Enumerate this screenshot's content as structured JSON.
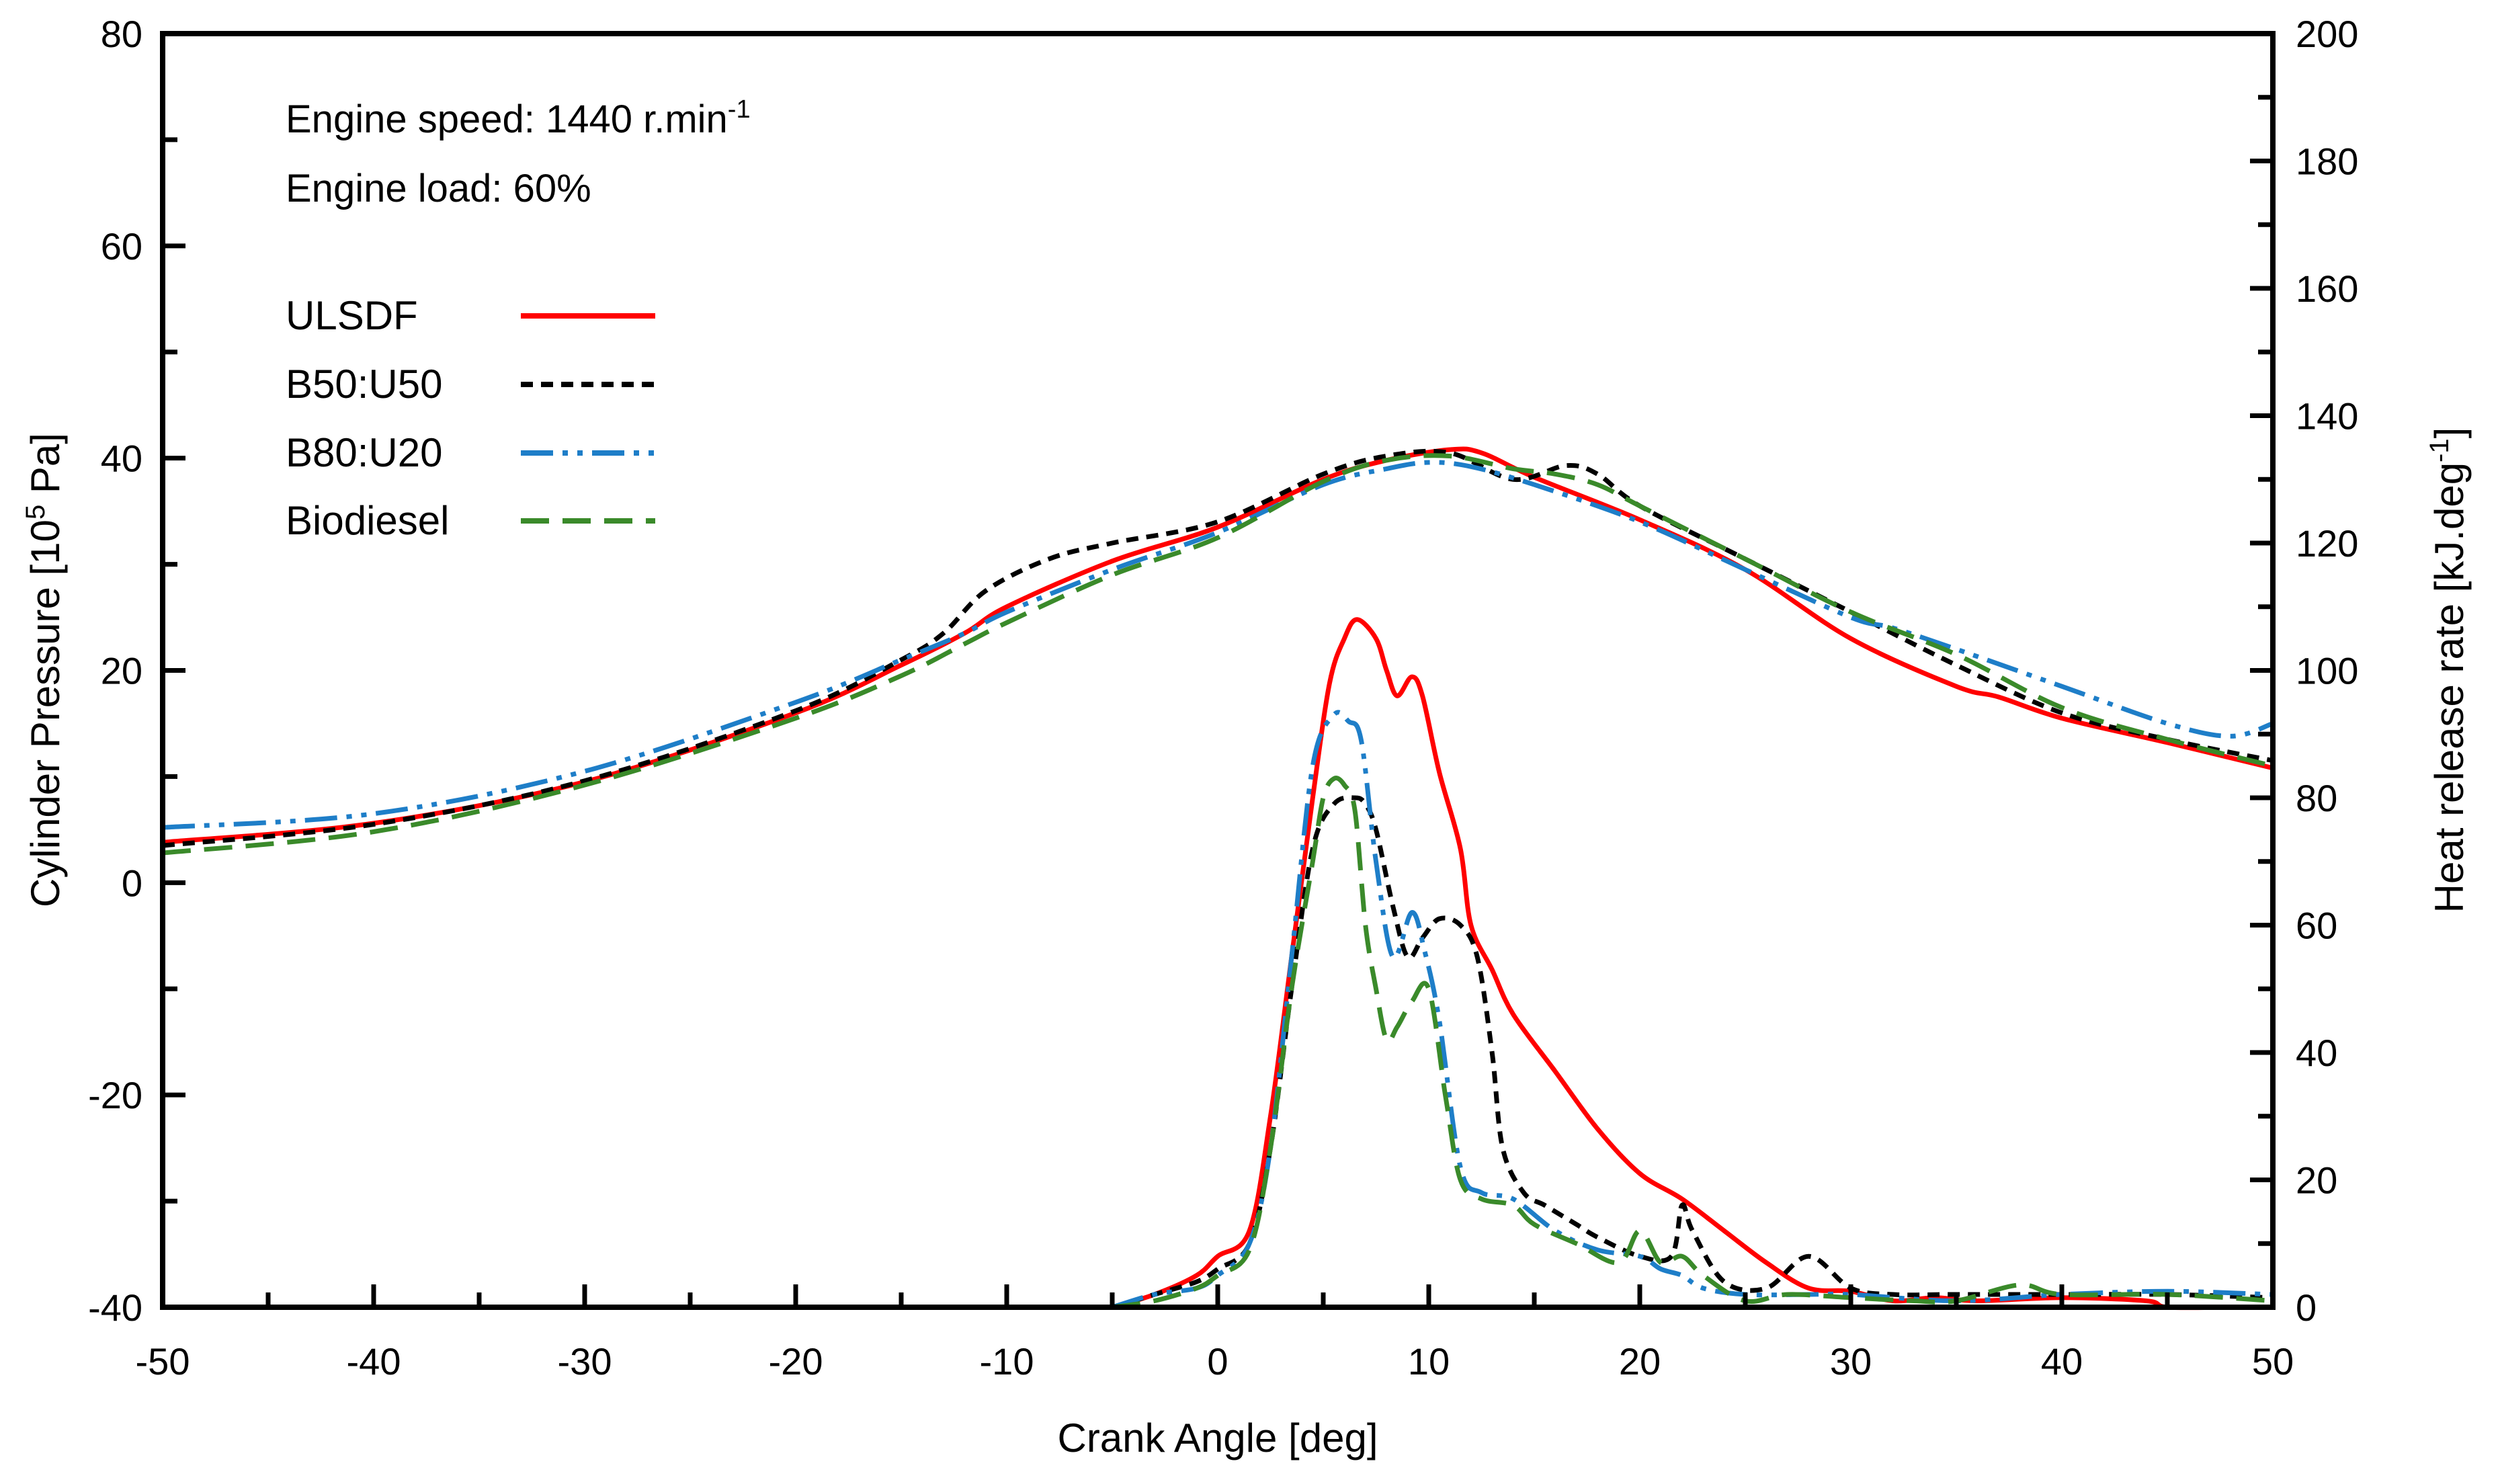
{
  "chart_data": {
    "type": "line",
    "xlabel": "Crank Angle [deg]",
    "ylabel_left": {
      "pre": "Cylinder Pressure [10",
      "sup": "5",
      "post": " Pa]"
    },
    "ylabel_right": {
      "pre": "Heat release rate [kJ.deg",
      "sup": "-1",
      "post": "]"
    },
    "xlim": [
      -50,
      50
    ],
    "ylim_left": [
      -40,
      80
    ],
    "ylim_right": [
      0,
      200
    ],
    "x_ticks": [
      -50,
      -40,
      -30,
      -20,
      -10,
      0,
      10,
      20,
      30,
      40,
      50
    ],
    "y_left_ticks": [
      -40,
      -20,
      0,
      20,
      40,
      60,
      80
    ],
    "y_right_ticks": [
      0,
      20,
      40,
      60,
      80,
      100,
      120,
      140,
      160,
      180,
      200
    ],
    "x_tick_labels": [
      "-50",
      "-40",
      "-30",
      "-20",
      "-10",
      "0",
      "10",
      "20",
      "30",
      "40",
      "50"
    ],
    "y_left_tick_labels": [
      "-40",
      "-20",
      "0",
      "20",
      "40",
      "60",
      "80"
    ],
    "y_right_tick_labels": [
      "0",
      "20",
      "40",
      "60",
      "80",
      "100",
      "120",
      "140",
      "160",
      "180",
      "200"
    ],
    "grid": false,
    "legend_position": "top-left",
    "annotations": {
      "speed": {
        "pre": "Engine speed: 1440 r.min",
        "sup": "-1"
      },
      "load": "Engine load: 60%"
    },
    "series": [
      {
        "name": "ULSDF",
        "color": "#ff0000",
        "dash": "solid",
        "pressure": [
          [
            -50,
            3.8
          ],
          [
            -40,
            5.6
          ],
          [
            -30,
            9.5
          ],
          [
            -20,
            16.0
          ],
          [
            -15,
            20.5
          ],
          [
            -12,
            23.5
          ],
          [
            -10,
            26.0
          ],
          [
            -5,
            30.3
          ],
          [
            0,
            33.5
          ],
          [
            5,
            38.0
          ],
          [
            8,
            39.8
          ],
          [
            11,
            40.8
          ],
          [
            12.5,
            40.5
          ],
          [
            15,
            38.2
          ],
          [
            20,
            34.2
          ],
          [
            25,
            29.5
          ],
          [
            30,
            23.0
          ],
          [
            35,
            18.5
          ],
          [
            37,
            17.5
          ],
          [
            40,
            15.5
          ],
          [
            45,
            13.2
          ],
          [
            50,
            10.8
          ]
        ],
        "hrr": [
          [
            -5,
            0
          ],
          [
            -3,
            2
          ],
          [
            -1,
            5
          ],
          [
            0,
            8
          ],
          [
            1.5,
            12
          ],
          [
            2.5,
            30
          ],
          [
            3.5,
            55
          ],
          [
            4.5,
            80
          ],
          [
            5.3,
            98
          ],
          [
            6,
            105
          ],
          [
            6.6,
            108
          ],
          [
            7.5,
            105
          ],
          [
            8,
            100
          ],
          [
            8.5,
            96
          ],
          [
            9.2,
            99
          ],
          [
            9.7,
            96
          ],
          [
            10.5,
            84
          ],
          [
            11.5,
            72
          ],
          [
            12,
            60
          ],
          [
            13,
            53
          ],
          [
            14,
            46
          ],
          [
            16,
            37
          ],
          [
            18,
            28
          ],
          [
            20,
            21
          ],
          [
            22,
            17
          ],
          [
            24,
            12
          ],
          [
            26,
            7
          ],
          [
            28,
            3
          ],
          [
            30,
            2.5
          ],
          [
            32,
            1
          ],
          [
            34,
            1.5
          ],
          [
            36,
            1
          ],
          [
            40,
            1.5
          ],
          [
            44,
            1
          ],
          [
            45,
            0
          ],
          [
            48,
            -0.5
          ],
          [
            50,
            -0.5
          ]
        ]
      },
      {
        "name": "B50:U50",
        "color": "#000000",
        "dash": "short",
        "pressure": [
          [
            -50,
            3.5
          ],
          [
            -40,
            5.5
          ],
          [
            -30,
            9.6
          ],
          [
            -20,
            16.2
          ],
          [
            -15,
            21.0
          ],
          [
            -13,
            23.5
          ],
          [
            -11,
            27.5
          ],
          [
            -8,
            30.5
          ],
          [
            -5,
            32.0
          ],
          [
            0,
            34.0
          ],
          [
            5,
            38.5
          ],
          [
            8,
            40.2
          ],
          [
            11,
            40.5
          ],
          [
            14,
            38.0
          ],
          [
            16.5,
            39.3
          ],
          [
            18,
            38.5
          ],
          [
            20,
            35.5
          ],
          [
            25,
            30.5
          ],
          [
            30,
            25.5
          ],
          [
            35,
            20.5
          ],
          [
            40,
            16.0
          ],
          [
            45,
            13.5
          ],
          [
            50,
            11.5
          ]
        ],
        "hrr": [
          [
            -5,
            0
          ],
          [
            -3,
            2
          ],
          [
            -1,
            4
          ],
          [
            0,
            6
          ],
          [
            1.5,
            10
          ],
          [
            2.5,
            25
          ],
          [
            3.5,
            50
          ],
          [
            4.5,
            72
          ],
          [
            5.5,
            79
          ],
          [
            6.5,
            80
          ],
          [
            7,
            79
          ],
          [
            7.5,
            75
          ],
          [
            8.3,
            63
          ],
          [
            9,
            55
          ],
          [
            9.7,
            58
          ],
          [
            10.5,
            61
          ],
          [
            11.5,
            60
          ],
          [
            12.3,
            55
          ],
          [
            13,
            40
          ],
          [
            13.5,
            25
          ],
          [
            14.5,
            18
          ],
          [
            15.5,
            16
          ],
          [
            17,
            13
          ],
          [
            18,
            11
          ],
          [
            20,
            8
          ],
          [
            21.5,
            8
          ],
          [
            22,
            16
          ],
          [
            22.5,
            12
          ],
          [
            24,
            4
          ],
          [
            26,
            3
          ],
          [
            28,
            8
          ],
          [
            30,
            3
          ],
          [
            32,
            2
          ],
          [
            35,
            2
          ],
          [
            40,
            2
          ],
          [
            45,
            2
          ],
          [
            50,
            1.5
          ]
        ]
      },
      {
        "name": "B80:U20",
        "color": "#1e7ec8",
        "dash": "dashdotdot",
        "pressure": [
          [
            -50,
            5.2
          ],
          [
            -40,
            6.5
          ],
          [
            -30,
            10.5
          ],
          [
            -20,
            17.0
          ],
          [
            -15,
            21.0
          ],
          [
            -12,
            23.5
          ],
          [
            -10,
            25.5
          ],
          [
            -5,
            29.5
          ],
          [
            0,
            33.0
          ],
          [
            5,
            37.5
          ],
          [
            8,
            39.0
          ],
          [
            10,
            39.6
          ],
          [
            12,
            39.2
          ],
          [
            15,
            37.5
          ],
          [
            20,
            34.0
          ],
          [
            25,
            29.5
          ],
          [
            30,
            25.0
          ],
          [
            32,
            24.0
          ],
          [
            35,
            22.0
          ],
          [
            40,
            18.5
          ],
          [
            45,
            15.0
          ],
          [
            48,
            13.8
          ],
          [
            50,
            15.0
          ]
        ],
        "hrr": [
          [
            -5,
            0
          ],
          [
            -3,
            2
          ],
          [
            -1,
            3
          ],
          [
            0,
            5
          ],
          [
            1.5,
            10
          ],
          [
            2.5,
            25
          ],
          [
            3.5,
            55
          ],
          [
            4.5,
            85
          ],
          [
            5.5,
            93
          ],
          [
            6.2,
            92
          ],
          [
            6.8,
            89
          ],
          [
            7.5,
            70
          ],
          [
            8.3,
            55
          ],
          [
            9.2,
            62
          ],
          [
            9.8,
            56
          ],
          [
            10.5,
            45
          ],
          [
            11.5,
            22
          ],
          [
            12.5,
            18
          ],
          [
            14,
            17
          ],
          [
            16,
            12
          ],
          [
            18,
            9
          ],
          [
            20,
            8
          ],
          [
            21,
            6
          ],
          [
            22,
            5
          ],
          [
            23,
            3
          ],
          [
            25,
            2
          ],
          [
            28,
            2
          ],
          [
            30,
            2
          ],
          [
            35,
            1
          ],
          [
            40,
            2
          ],
          [
            45,
            2.5
          ],
          [
            50,
            2
          ]
        ]
      },
      {
        "name": "Biodiesel",
        "color": "#3a8a2a",
        "dash": "dashed",
        "pressure": [
          [
            -50,
            2.8
          ],
          [
            -40,
            4.8
          ],
          [
            -30,
            9.2
          ],
          [
            -20,
            15.5
          ],
          [
            -15,
            19.5
          ],
          [
            -12,
            22.5
          ],
          [
            -10,
            24.5
          ],
          [
            -5,
            29.0
          ],
          [
            0,
            32.5
          ],
          [
            5,
            37.8
          ],
          [
            8,
            39.8
          ],
          [
            11,
            40.2
          ],
          [
            14,
            39.0
          ],
          [
            16,
            38.5
          ],
          [
            18,
            37.5
          ],
          [
            20,
            35.5
          ],
          [
            25,
            30.5
          ],
          [
            30,
            25.5
          ],
          [
            35,
            21.5
          ],
          [
            40,
            16.5
          ],
          [
            45,
            13.5
          ],
          [
            50,
            11.0
          ]
        ],
        "hrr": [
          [
            -5,
            0
          ],
          [
            -3,
            1
          ],
          [
            -1,
            3
          ],
          [
            0,
            5
          ],
          [
            1.5,
            9
          ],
          [
            2.5,
            25
          ],
          [
            3.5,
            50
          ],
          [
            4.5,
            70
          ],
          [
            5,
            80
          ],
          [
            5.5,
            83
          ],
          [
            6,
            82
          ],
          [
            6.5,
            78
          ],
          [
            7,
            60
          ],
          [
            7.5,
            50
          ],
          [
            8,
            42
          ],
          [
            8.5,
            44
          ],
          [
            9.2,
            48
          ],
          [
            10,
            50
          ],
          [
            10.8,
            33
          ],
          [
            11.5,
            20
          ],
          [
            12.5,
            17
          ],
          [
            14,
            16
          ],
          [
            15,
            13
          ],
          [
            17,
            10
          ],
          [
            19,
            7
          ],
          [
            20,
            12
          ],
          [
            21,
            7
          ],
          [
            22,
            8
          ],
          [
            23,
            5
          ],
          [
            25,
            1
          ],
          [
            27,
            2
          ],
          [
            30,
            1.5
          ],
          [
            33,
            1
          ],
          [
            35,
            1
          ],
          [
            38,
            3.5
          ],
          [
            40,
            2
          ],
          [
            45,
            2
          ],
          [
            50,
            1
          ]
        ]
      }
    ]
  }
}
